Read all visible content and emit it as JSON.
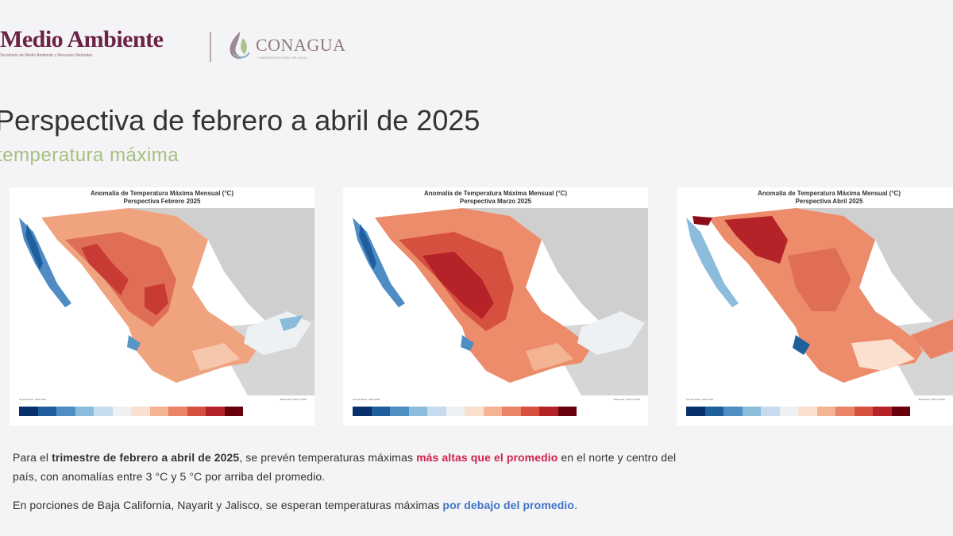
{
  "header": {
    "logo_left_title": "Medio Ambiente",
    "logo_left_subtitle": "Secretaría de Medio Ambiente y Recursos Naturales",
    "logo_right_title": "CONAGUA",
    "logo_right_subtitle": "COMISIÓN NACIONAL DEL AGUA"
  },
  "slide": {
    "title": "Perspectiva de febrero a abril de 2025",
    "subtitle": "temperatura máxima"
  },
  "colors": {
    "brand_purple": "#6b2245",
    "subtitle_green": "#a5c080",
    "highlight_red": "#d1234d",
    "highlight_blue": "#3f73c8"
  },
  "colorbar_colors": [
    "#08306b",
    "#1f5f9e",
    "#4e8fc3",
    "#8cbcdb",
    "#c6dcee",
    "#eef1f4",
    "#fbe0cf",
    "#f4b393",
    "#ea8466",
    "#d6503f",
    "#b52329",
    "#67000d"
  ],
  "maps": [
    {
      "title_line1": "Anomalía de Temperatura Máxima Mensual (°C)",
      "title_line2": "Perspectiva Febrero 2025",
      "logo1": "CONAGUA",
      "logo2": "SMN",
      "footer_left": "Periodo Base: 1991-2020",
      "footer_right": "Elaborado: Febrero 2025"
    },
    {
      "title_line1": "Anomalía de Temperatura Máxima Mensual (°C)",
      "title_line2": "Perspectiva Marzo 2025",
      "logo1": "CONAGUA",
      "logo2": "SMN",
      "footer_left": "Periodo Base: 1991-2020",
      "footer_right": "Elaborado: Febrero 2025"
    },
    {
      "title_line1": "Anomalía de Temperatura Máxima Mensual (°C)",
      "title_line2": "Perspectiva Abril 2025",
      "logo1": "CONAGUA",
      "logo2": "SMN",
      "footer_left": "Periodo Base: 1991-2020",
      "footer_right": "Elaborado: Febrero 2025"
    }
  ],
  "text": {
    "p1_a": "Para el ",
    "p1_b": "trimestre de febrero a abril de 2025",
    "p1_c": ", se prevén temperaturas máximas ",
    "p1_d": "más altas que el  promedio",
    "p1_e": " en el norte y centro del",
    "p2": "país, con anomalías entre 3 °C y 5 °C por arriba del promedio.",
    "p3_a": "En porciones de Baja California, Nayarit y Jalisco, se esperan temperaturas máximas ",
    "p3_b": "por debajo del promedio",
    "p3_c": "."
  }
}
